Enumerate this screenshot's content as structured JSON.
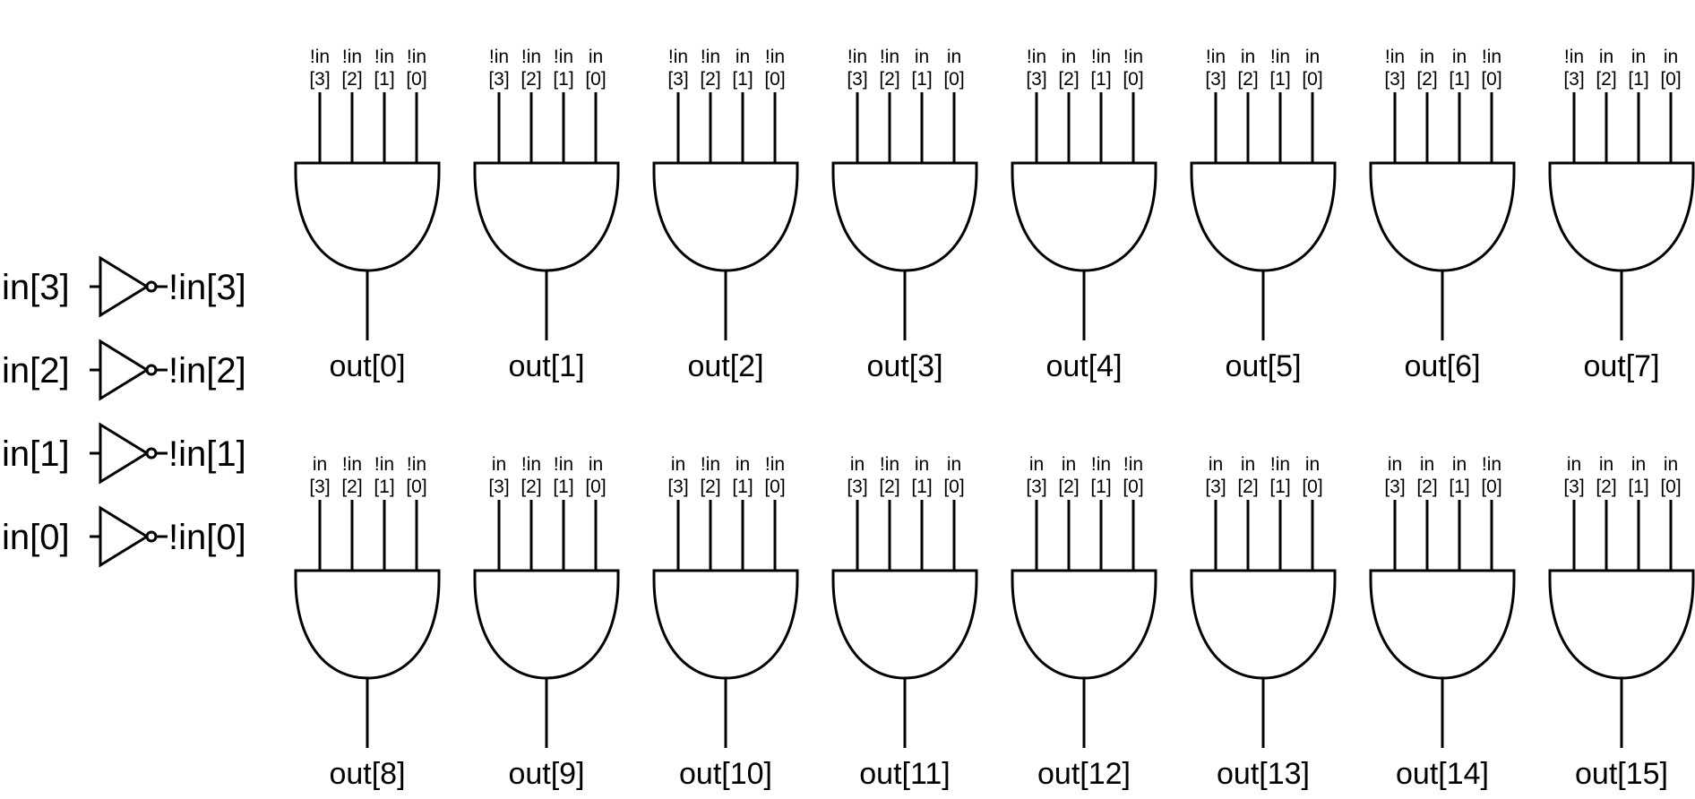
{
  "inverters": [
    {
      "input": "in[3]",
      "output": "!in[3]"
    },
    {
      "input": "in[2]",
      "output": "!in[2]"
    },
    {
      "input": "in[1]",
      "output": "!in[1]"
    },
    {
      "input": "in[0]",
      "output": "!in[0]"
    }
  ],
  "gates": [
    {
      "output": "out[0]",
      "inputs": [
        [
          "!in",
          "[3]"
        ],
        [
          "!in",
          "[2]"
        ],
        [
          "!in",
          "[1]"
        ],
        [
          "!in",
          "[0]"
        ]
      ]
    },
    {
      "output": "out[1]",
      "inputs": [
        [
          "!in",
          "[3]"
        ],
        [
          "!in",
          "[2]"
        ],
        [
          "!in",
          "[1]"
        ],
        [
          "in",
          "[0]"
        ]
      ]
    },
    {
      "output": "out[2]",
      "inputs": [
        [
          "!in",
          "[3]"
        ],
        [
          "!in",
          "[2]"
        ],
        [
          "in",
          "[1]"
        ],
        [
          "!in",
          "[0]"
        ]
      ]
    },
    {
      "output": "out[3]",
      "inputs": [
        [
          "!in",
          "[3]"
        ],
        [
          "!in",
          "[2]"
        ],
        [
          "in",
          "[1]"
        ],
        [
          "in",
          "[0]"
        ]
      ]
    },
    {
      "output": "out[4]",
      "inputs": [
        [
          "!in",
          "[3]"
        ],
        [
          "in",
          "[2]"
        ],
        [
          "!in",
          "[1]"
        ],
        [
          "!in",
          "[0]"
        ]
      ]
    },
    {
      "output": "out[5]",
      "inputs": [
        [
          "!in",
          "[3]"
        ],
        [
          "in",
          "[2]"
        ],
        [
          "!in",
          "[1]"
        ],
        [
          "in",
          "[0]"
        ]
      ]
    },
    {
      "output": "out[6]",
      "inputs": [
        [
          "!in",
          "[3]"
        ],
        [
          "in",
          "[2]"
        ],
        [
          "in",
          "[1]"
        ],
        [
          "!in",
          "[0]"
        ]
      ]
    },
    {
      "output": "out[7]",
      "inputs": [
        [
          "!in",
          "[3]"
        ],
        [
          "in",
          "[2]"
        ],
        [
          "in",
          "[1]"
        ],
        [
          "in",
          "[0]"
        ]
      ]
    },
    {
      "output": "out[8]",
      "inputs": [
        [
          "in",
          "[3]"
        ],
        [
          "!in",
          "[2]"
        ],
        [
          "!in",
          "[1]"
        ],
        [
          "!in",
          "[0]"
        ]
      ]
    },
    {
      "output": "out[9]",
      "inputs": [
        [
          "in",
          "[3]"
        ],
        [
          "!in",
          "[2]"
        ],
        [
          "!in",
          "[1]"
        ],
        [
          "in",
          "[0]"
        ]
      ]
    },
    {
      "output": "out[10]",
      "inputs": [
        [
          "in",
          "[3]"
        ],
        [
          "!in",
          "[2]"
        ],
        [
          "in",
          "[1]"
        ],
        [
          "!in",
          "[0]"
        ]
      ]
    },
    {
      "output": "out[11]",
      "inputs": [
        [
          "in",
          "[3]"
        ],
        [
          "!in",
          "[2]"
        ],
        [
          "in",
          "[1]"
        ],
        [
          "in",
          "[0]"
        ]
      ]
    },
    {
      "output": "out[12]",
      "inputs": [
        [
          "in",
          "[3]"
        ],
        [
          "in",
          "[2]"
        ],
        [
          "!in",
          "[1]"
        ],
        [
          "!in",
          "[0]"
        ]
      ]
    },
    {
      "output": "out[13]",
      "inputs": [
        [
          "in",
          "[3]"
        ],
        [
          "in",
          "[2]"
        ],
        [
          "!in",
          "[1]"
        ],
        [
          "in",
          "[0]"
        ]
      ]
    },
    {
      "output": "out[14]",
      "inputs": [
        [
          "in",
          "[3]"
        ],
        [
          "in",
          "[2]"
        ],
        [
          "in",
          "[1]"
        ],
        [
          "!in",
          "[0]"
        ]
      ]
    },
    {
      "output": "out[15]",
      "inputs": [
        [
          "in",
          "[3]"
        ],
        [
          "in",
          "[2]"
        ],
        [
          "in",
          "[1]"
        ],
        [
          "in",
          "[0]"
        ]
      ]
    }
  ]
}
